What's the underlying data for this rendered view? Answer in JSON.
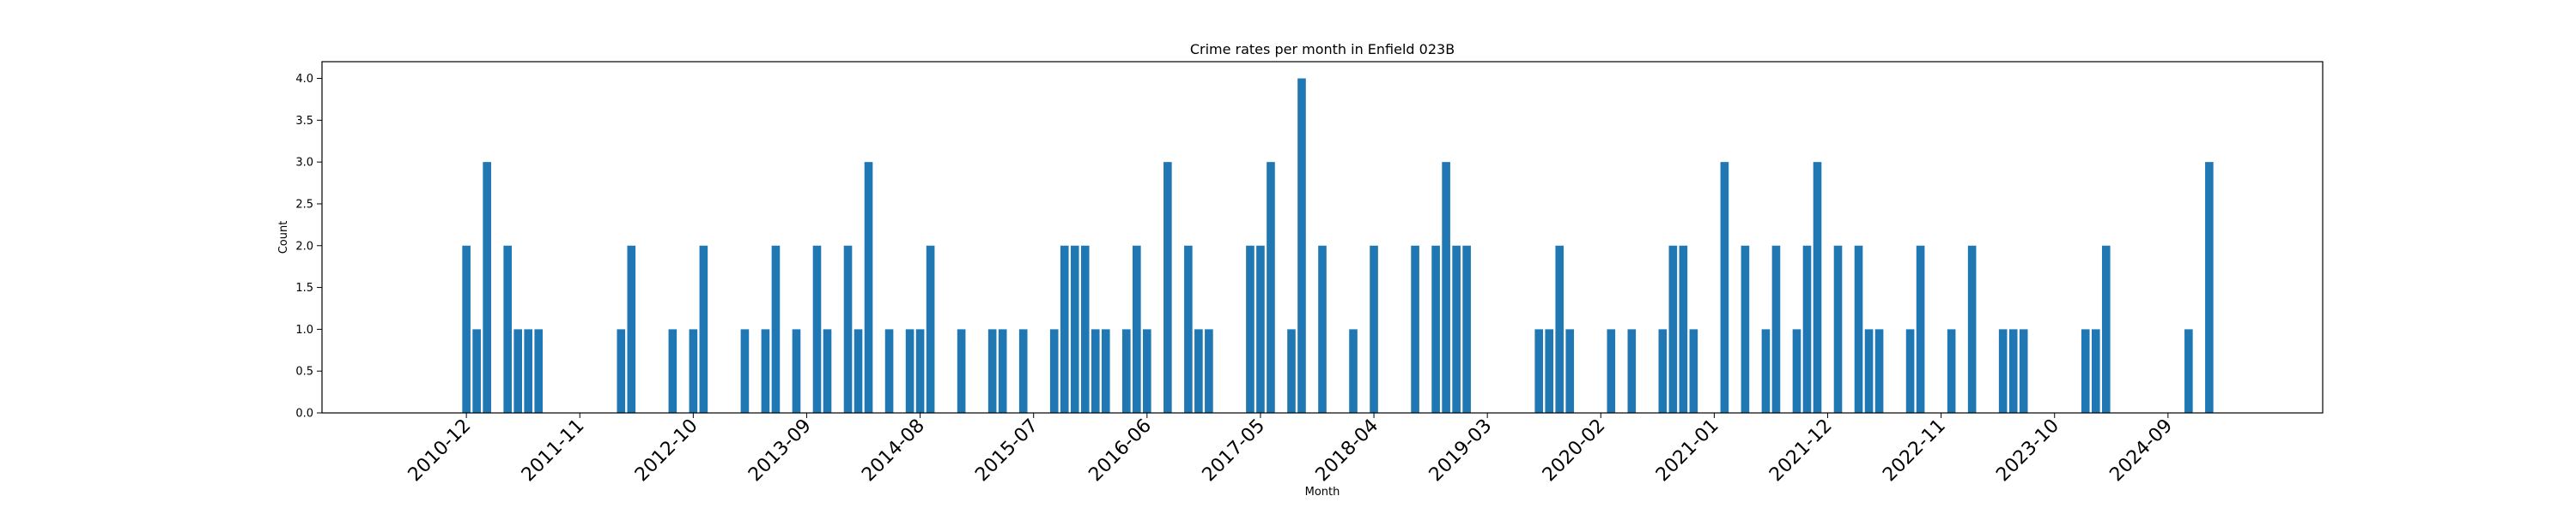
{
  "chart_data": {
    "type": "bar",
    "title": "Crime rates per month in Enfield 023B",
    "xlabel": "Month",
    "ylabel": "Count",
    "ylim": [
      0,
      4.2
    ],
    "yticks": [
      "0.0",
      "0.5",
      "1.0",
      "1.5",
      "2.0",
      "2.5",
      "3.0",
      "3.5",
      "4.0"
    ],
    "xlim": [
      "2009-10",
      "2025-12"
    ],
    "xticks": [
      "2010-12",
      "2011-11",
      "2012-10",
      "2013-09",
      "2014-08",
      "2015-07",
      "2016-06",
      "2017-05",
      "2018-04",
      "2019-03",
      "2020-02",
      "2021-01",
      "2021-12",
      "2022-11",
      "2023-10",
      "2024-09"
    ],
    "grid": false,
    "bar_color": "#1f77b4",
    "months": [
      "2010-12",
      "2011-01",
      "2011-02",
      "2011-04",
      "2011-05",
      "2011-06",
      "2011-07",
      "2012-03",
      "2012-04",
      "2012-08",
      "2012-10",
      "2012-11",
      "2013-03",
      "2013-05",
      "2013-06",
      "2013-08",
      "2013-10",
      "2013-11",
      "2014-01",
      "2014-02",
      "2014-03",
      "2014-05",
      "2014-07",
      "2014-08",
      "2014-09",
      "2014-12",
      "2015-03",
      "2015-04",
      "2015-06",
      "2015-09",
      "2015-10",
      "2015-11",
      "2015-12",
      "2016-01",
      "2016-02",
      "2016-04",
      "2016-05",
      "2016-06",
      "2016-08",
      "2016-10",
      "2016-11",
      "2016-12",
      "2017-04",
      "2017-05",
      "2017-06",
      "2017-08",
      "2017-09",
      "2017-11",
      "2018-02",
      "2018-04",
      "2018-08",
      "2018-10",
      "2018-11",
      "2018-12",
      "2019-01",
      "2019-08",
      "2019-09",
      "2019-10",
      "2019-11",
      "2020-03",
      "2020-05",
      "2020-08",
      "2020-09",
      "2020-10",
      "2020-11",
      "2021-02",
      "2021-04",
      "2021-06",
      "2021-07",
      "2021-09",
      "2021-10",
      "2021-11",
      "2022-01",
      "2022-03",
      "2022-04",
      "2022-05",
      "2022-08",
      "2022-09",
      "2022-12",
      "2023-02",
      "2023-05",
      "2023-06",
      "2023-07",
      "2024-01",
      "2024-02",
      "2024-03",
      "2024-11",
      "2025-01"
    ],
    "values": [
      2,
      1,
      3,
      2,
      1,
      1,
      1,
      1,
      2,
      1,
      1,
      2,
      1,
      1,
      2,
      1,
      2,
      1,
      2,
      1,
      3,
      1,
      1,
      1,
      2,
      1,
      1,
      1,
      1,
      1,
      2,
      2,
      2,
      1,
      1,
      1,
      2,
      1,
      3,
      2,
      1,
      1,
      2,
      2,
      3,
      1,
      4,
      2,
      1,
      2,
      2,
      2,
      3,
      2,
      2,
      1,
      1,
      2,
      1,
      1,
      1,
      1,
      2,
      2,
      1,
      3,
      2,
      1,
      2,
      1,
      2,
      3,
      2,
      2,
      1,
      1,
      1,
      2,
      1,
      2,
      1,
      1,
      1,
      1,
      1,
      2,
      1,
      3
    ]
  }
}
